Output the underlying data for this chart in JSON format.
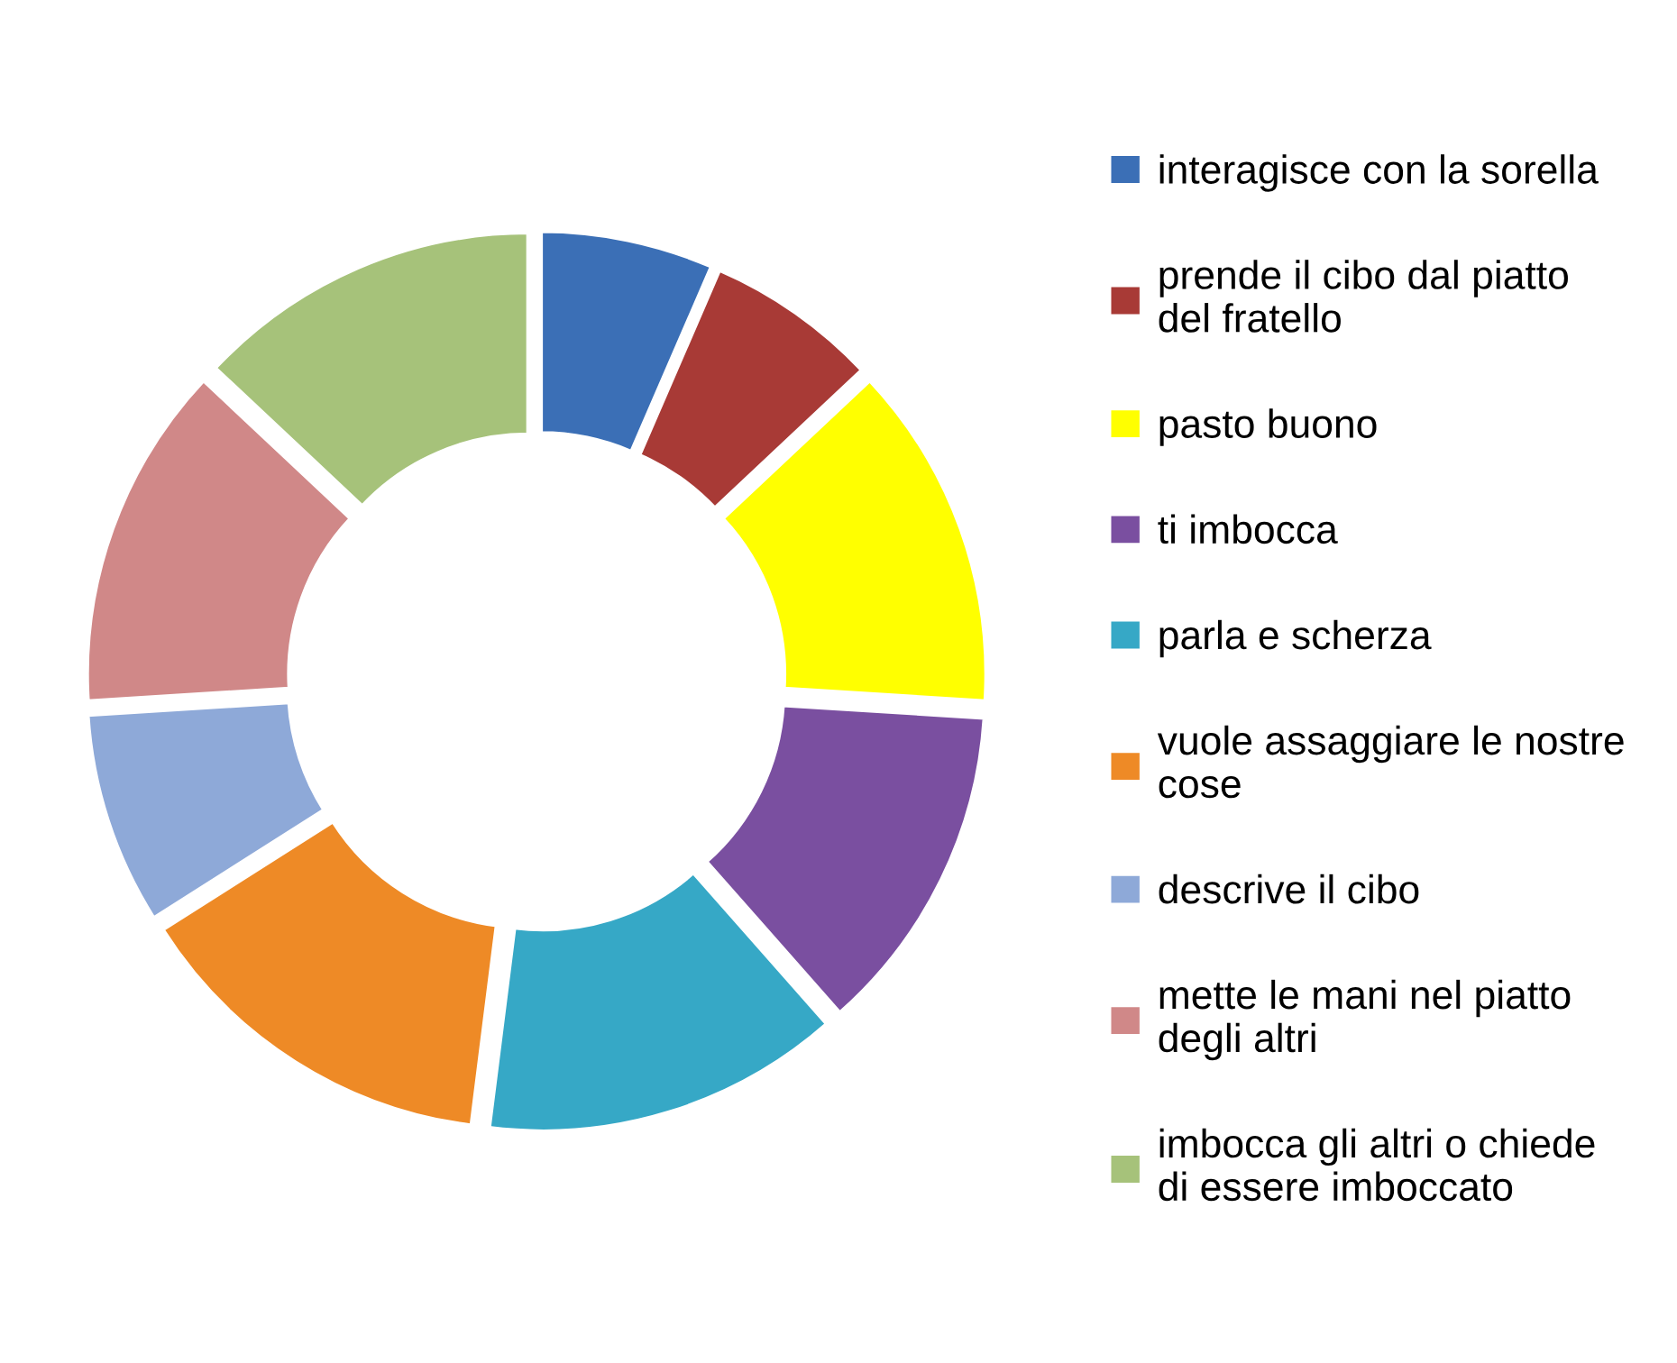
{
  "chart_data": {
    "type": "donut",
    "categories": [
      "interagisce con la sorella",
      "prende il cibo dal piatto\ndel fratello",
      "pasto buono",
      "ti imbocca",
      "parla e scherza",
      "vuole assaggiare le nostre\ncose",
      "descrive il cibo",
      "mette le mani nel piatto\ndegli altri",
      "imbocca gli altri o chiede\ndi essere imboccato"
    ],
    "values": [
      6.5,
      6.5,
      13,
      12.5,
      13.5,
      14,
      8,
      13,
      13
    ],
    "colors": [
      "#3b6fb6",
      "#a83a36",
      "#ffff00",
      "#7a4fa0",
      "#36a8c6",
      "#ee8a26",
      "#8ea9d8",
      "#d08888",
      "#a6c27a"
    ],
    "legend": "right"
  }
}
